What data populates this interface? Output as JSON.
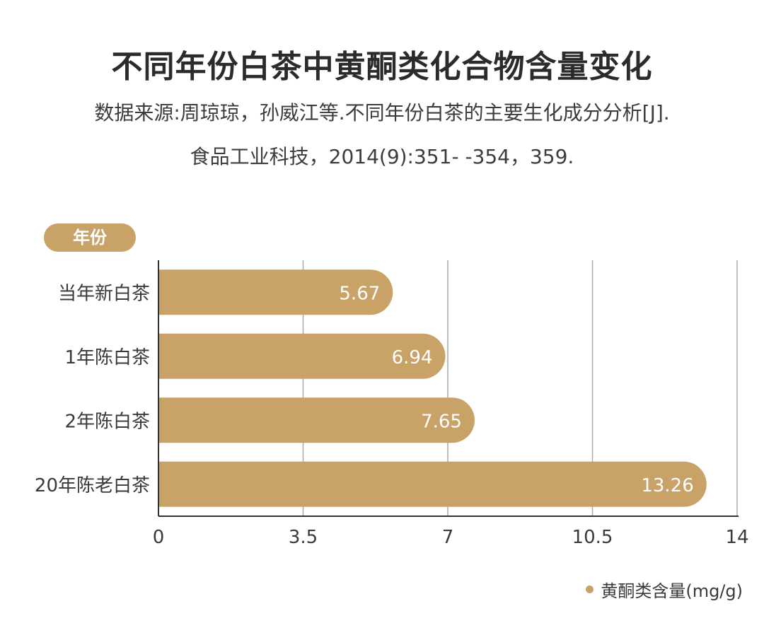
{
  "title": "不同年份白茶中黄酮类化合物含量变化",
  "source_line1": "数据来源:周琼琼，孙威江等.不同年份白茶的主要生化成分分析[J].",
  "source_line2": "食品工业科技，2014(9):351- -354，359.",
  "colors": {
    "bar": "#C8A266",
    "pill": "#C8A266",
    "grid": "#aaaaaa",
    "axis": "#333333",
    "bar_label": "#ffffff"
  },
  "chart_data": {
    "type": "bar",
    "orientation": "horizontal",
    "y_axis_label": "年份",
    "categories": [
      "当年新白茶",
      "1年陈白茶",
      "2年陈白茶",
      "20年陈老白茶"
    ],
    "series": [
      {
        "name": "黄酮类含量(mg/g)",
        "values": [
          5.67,
          6.94,
          7.65,
          13.26
        ]
      }
    ],
    "value_labels": [
      "5.67",
      "6.94",
      "7.65",
      "13.26"
    ],
    "xlim": [
      0,
      14
    ],
    "xticks": [
      0,
      3.5,
      7,
      10.5,
      14
    ],
    "xtick_labels": [
      "0",
      "3.5",
      "7",
      "10.5",
      "14"
    ],
    "grid": true,
    "legend_position": "bottom-right"
  }
}
